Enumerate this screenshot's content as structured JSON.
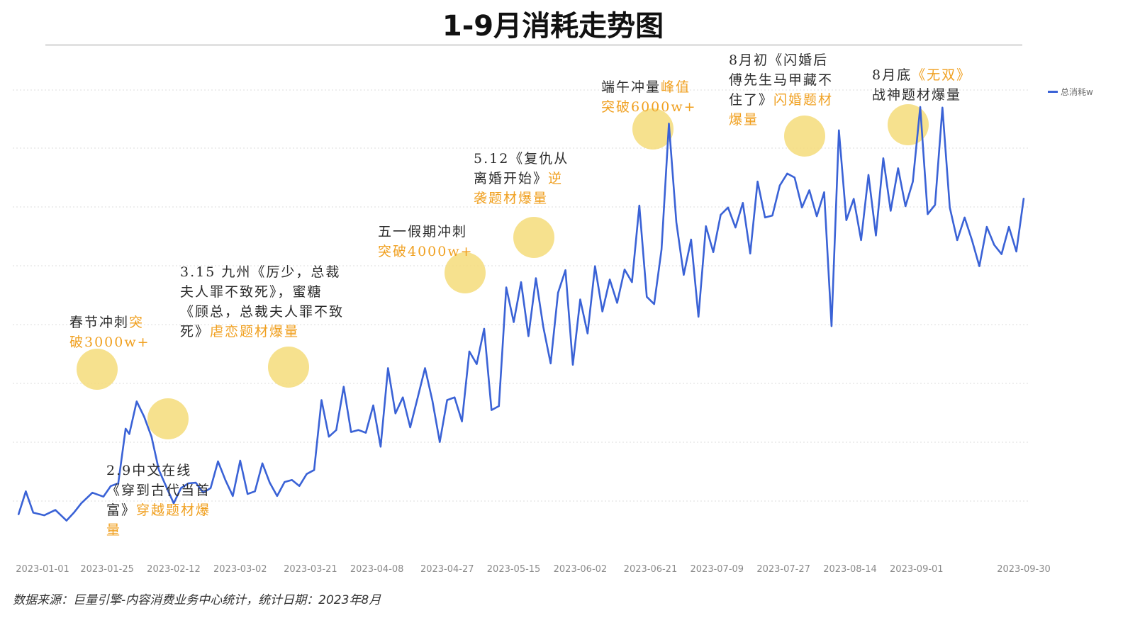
{
  "title": "1-9月消耗走势图",
  "source_note": "数据来源：巨量引擎-内容消费业务中心统计，统计日期：2023年8月",
  "colors": {
    "line": "#3a62d6",
    "highlight": "#f5dc7a",
    "accent_text": "#f0a020",
    "grid": "#dcdcdc"
  },
  "annotations": [
    {
      "id": "spring",
      "text": "春节冲刺",
      "highlight": "突破3000w+"
    },
    {
      "id": "feb9",
      "text": "2.9中文在线《穿到古代当首富》",
      "highlight": "穿越题材爆量"
    },
    {
      "id": "mar15",
      "text": "3.15 九州《厉少，总裁夫人罪不致死》，蜜糖《顾总，总裁夫人罪不致死》",
      "highlight": "虐恋题材爆量"
    },
    {
      "id": "may1",
      "text": "五一假期冲刺",
      "highlight": "突破4000w+"
    },
    {
      "id": "may12",
      "text": "5.12《复仇从离婚开始》",
      "highlight": "逆袭题材爆量"
    },
    {
      "id": "duanwu",
      "text": "端午冲量",
      "highlight": "峰值突破6000w+"
    },
    {
      "id": "aug_early",
      "text": "8月初《闪婚后傅先生马甲藏不住了》",
      "highlight": "闪婚题材爆量"
    },
    {
      "id": "aug_end",
      "text": "8月底",
      "highlight_mid": "《无双》",
      "text_tail": "战神题材爆量"
    }
  ],
  "chart_data": {
    "type": "line",
    "title": "1-9月消耗走势图",
    "xlabel": "",
    "ylabel": "",
    "x_range": [
      "2023-01-01",
      "2023-09-30"
    ],
    "x_tick_labels": [
      "2023-01-01",
      "2023-01-25",
      "2023-02-12",
      "2023-03-02",
      "2023-03-21",
      "2023-04-08",
      "2023-04-27",
      "2023-05-15",
      "2023-06-02",
      "2023-06-21",
      "2023-07-09",
      "2023-07-27",
      "2023-08-14",
      "2023-09-01",
      "2023-09-30"
    ],
    "y_axis_labels_shown": false,
    "grid": true,
    "legend": "top-right",
    "series": [
      {
        "name": "总消耗w",
        "color": "#3a62d6",
        "points": [
          [
            "2023-01-01",
            1530
          ],
          [
            "2023-01-03",
            1880
          ],
          [
            "2023-01-05",
            1560
          ],
          [
            "2023-01-08",
            1520
          ],
          [
            "2023-01-11",
            1600
          ],
          [
            "2023-01-14",
            1440
          ],
          [
            "2023-01-16",
            1560
          ],
          [
            "2023-01-18",
            1700
          ],
          [
            "2023-01-21",
            1860
          ],
          [
            "2023-01-24",
            1800
          ],
          [
            "2023-01-26",
            1960
          ],
          [
            "2023-01-28",
            2000
          ],
          [
            "2023-01-30",
            2820
          ],
          [
            "2023-01-31",
            2740
          ],
          [
            "2023-02-02",
            3230
          ],
          [
            "2023-02-04",
            3000
          ],
          [
            "2023-02-06",
            2700
          ],
          [
            "2023-02-08",
            2200
          ],
          [
            "2023-02-10",
            1950
          ],
          [
            "2023-02-12",
            1700
          ],
          [
            "2023-02-14",
            1930
          ],
          [
            "2023-02-16",
            2000
          ],
          [
            "2023-02-18",
            2010
          ],
          [
            "2023-02-20",
            1860
          ],
          [
            "2023-02-22",
            1930
          ],
          [
            "2023-02-24",
            2330
          ],
          [
            "2023-02-26",
            2050
          ],
          [
            "2023-02-28",
            1810
          ],
          [
            "2023-03-02",
            2340
          ],
          [
            "2023-03-04",
            1840
          ],
          [
            "2023-03-06",
            1880
          ],
          [
            "2023-03-08",
            2300
          ],
          [
            "2023-03-10",
            2010
          ],
          [
            "2023-03-12",
            1810
          ],
          [
            "2023-03-14",
            2020
          ],
          [
            "2023-03-16",
            2050
          ],
          [
            "2023-03-18",
            1960
          ],
          [
            "2023-03-20",
            2140
          ],
          [
            "2023-03-22",
            2200
          ],
          [
            "2023-03-24",
            3250
          ],
          [
            "2023-03-26",
            2700
          ],
          [
            "2023-03-28",
            2800
          ],
          [
            "2023-03-30",
            3450
          ],
          [
            "2023-04-01",
            2770
          ],
          [
            "2023-04-03",
            2800
          ],
          [
            "2023-04-05",
            2760
          ],
          [
            "2023-04-07",
            3170
          ],
          [
            "2023-04-09",
            2550
          ],
          [
            "2023-04-11",
            3730
          ],
          [
            "2023-04-13",
            3050
          ],
          [
            "2023-04-15",
            3290
          ],
          [
            "2023-04-17",
            2840
          ],
          [
            "2023-04-19",
            3280
          ],
          [
            "2023-04-21",
            3730
          ],
          [
            "2023-04-23",
            3240
          ],
          [
            "2023-04-25",
            2620
          ],
          [
            "2023-04-27",
            3250
          ],
          [
            "2023-04-29",
            3290
          ],
          [
            "2023-05-01",
            2930
          ],
          [
            "2023-05-03",
            3980
          ],
          [
            "2023-05-05",
            3790
          ],
          [
            "2023-05-07",
            4320
          ],
          [
            "2023-05-09",
            3100
          ],
          [
            "2023-05-11",
            3160
          ],
          [
            "2023-05-13",
            4940
          ],
          [
            "2023-05-15",
            4420
          ],
          [
            "2023-05-17",
            5020
          ],
          [
            "2023-05-19",
            4210
          ],
          [
            "2023-05-21",
            5080
          ],
          [
            "2023-05-23",
            4350
          ],
          [
            "2023-05-25",
            3800
          ],
          [
            "2023-05-27",
            4860
          ],
          [
            "2023-05-29",
            5200
          ],
          [
            "2023-05-31",
            3780
          ],
          [
            "2023-06-02",
            4760
          ],
          [
            "2023-06-04",
            4250
          ],
          [
            "2023-06-06",
            5260
          ],
          [
            "2023-06-08",
            4580
          ],
          [
            "2023-06-10",
            5060
          ],
          [
            "2023-06-12",
            4710
          ],
          [
            "2023-06-14",
            5210
          ],
          [
            "2023-06-16",
            5020
          ],
          [
            "2023-06-18",
            6170
          ],
          [
            "2023-06-20",
            4800
          ],
          [
            "2023-06-22",
            4690
          ],
          [
            "2023-06-24",
            5510
          ],
          [
            "2023-06-26",
            7400
          ],
          [
            "2023-06-28",
            5920
          ],
          [
            "2023-06-30",
            5130
          ],
          [
            "2023-07-02",
            5660
          ],
          [
            "2023-07-04",
            4500
          ],
          [
            "2023-07-06",
            5860
          ],
          [
            "2023-07-08",
            5470
          ],
          [
            "2023-07-10",
            6030
          ],
          [
            "2023-07-12",
            6140
          ],
          [
            "2023-07-14",
            5840
          ],
          [
            "2023-07-16",
            6210
          ],
          [
            "2023-07-18",
            5450
          ],
          [
            "2023-07-20",
            6530
          ],
          [
            "2023-07-22",
            5990
          ],
          [
            "2023-07-24",
            6020
          ],
          [
            "2023-07-26",
            6470
          ],
          [
            "2023-07-28",
            6650
          ],
          [
            "2023-07-30",
            6590
          ],
          [
            "2023-08-01",
            6140
          ],
          [
            "2023-08-03",
            6400
          ],
          [
            "2023-08-05",
            6010
          ],
          [
            "2023-08-07",
            6370
          ],
          [
            "2023-08-09",
            4360
          ],
          [
            "2023-08-11",
            7300
          ],
          [
            "2023-08-13",
            5950
          ],
          [
            "2023-08-15",
            6270
          ],
          [
            "2023-08-17",
            5650
          ],
          [
            "2023-08-19",
            6630
          ],
          [
            "2023-08-21",
            5720
          ],
          [
            "2023-08-23",
            6880
          ],
          [
            "2023-08-25",
            6090
          ],
          [
            "2023-08-27",
            6730
          ],
          [
            "2023-08-29",
            6160
          ],
          [
            "2023-08-31",
            6530
          ],
          [
            "2023-09-02",
            7650
          ],
          [
            "2023-09-04",
            6040
          ],
          [
            "2023-09-06",
            6180
          ],
          [
            "2023-09-08",
            7640
          ],
          [
            "2023-09-10",
            6140
          ],
          [
            "2023-09-12",
            5650
          ],
          [
            "2023-09-14",
            5990
          ],
          [
            "2023-09-16",
            5650
          ],
          [
            "2023-09-18",
            5260
          ],
          [
            "2023-09-20",
            5850
          ],
          [
            "2023-09-22",
            5580
          ],
          [
            "2023-09-24",
            5440
          ],
          [
            "2023-09-26",
            5850
          ],
          [
            "2023-09-28",
            5480
          ],
          [
            "2023-09-30",
            6280
          ]
        ]
      }
    ]
  }
}
